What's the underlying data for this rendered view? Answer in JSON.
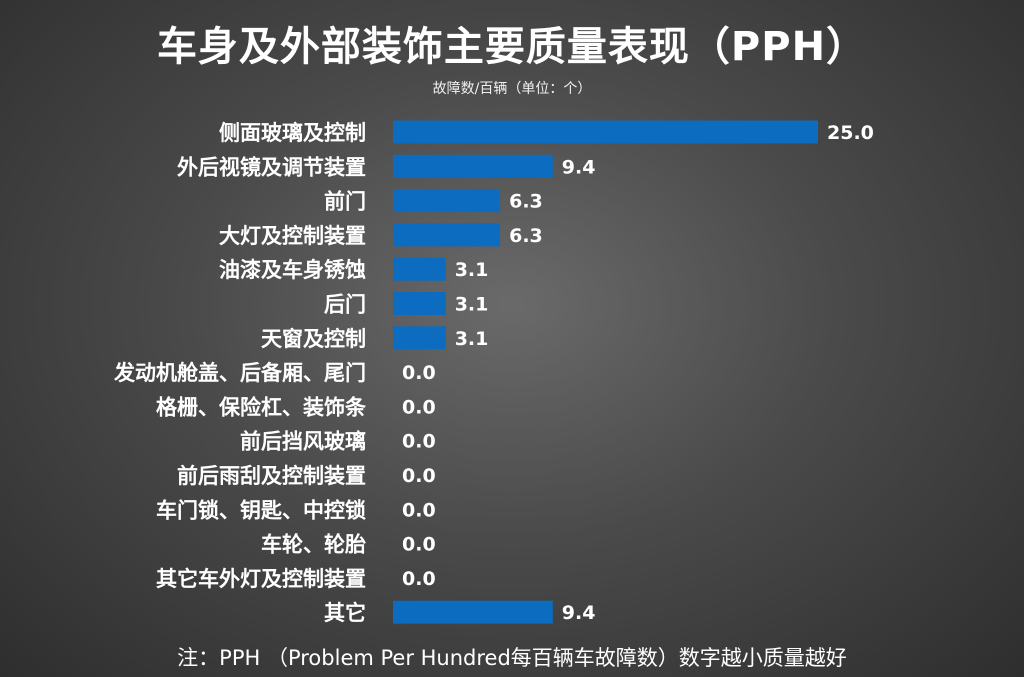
{
  "chart_data": {
    "type": "bar",
    "orientation": "horizontal",
    "title": "车身及外部装饰主要质量表现（PPH）",
    "subtitle": "故障数/百辆（单位：个）",
    "categories": [
      "侧面玻璃及控制",
      "外后视镜及调节装置",
      "前门",
      "大灯及控制装置",
      "油漆及车身锈蚀",
      "后门",
      "天窗及控制",
      "发动机舱盖、后备厢、尾门",
      "格栅、保险杠、装饰条",
      "前后挡风玻璃",
      "前后雨刮及控制装置",
      "车门锁、钥匙、中控锁",
      "车轮、轮胎",
      "其它车外灯及控制装置",
      "其它"
    ],
    "values": [
      25.0,
      9.4,
      6.3,
      6.3,
      3.1,
      3.1,
      3.1,
      0.0,
      0.0,
      0.0,
      0.0,
      0.0,
      0.0,
      0.0,
      9.4
    ],
    "value_labels": [
      "25.0",
      "9.4",
      "6.3",
      "6.3",
      "3.1",
      "3.1",
      "3.1",
      "0.0",
      "0.0",
      "0.0",
      "0.0",
      "0.0",
      "0.0",
      "0.0",
      "9.4"
    ],
    "xlim": [
      0,
      25
    ],
    "grid": false,
    "legend": "none",
    "bar_color": "#0b6cc0",
    "footnote": "注：PPH （Problem Per Hundred每百辆车故障数）数字越小质量越好"
  }
}
